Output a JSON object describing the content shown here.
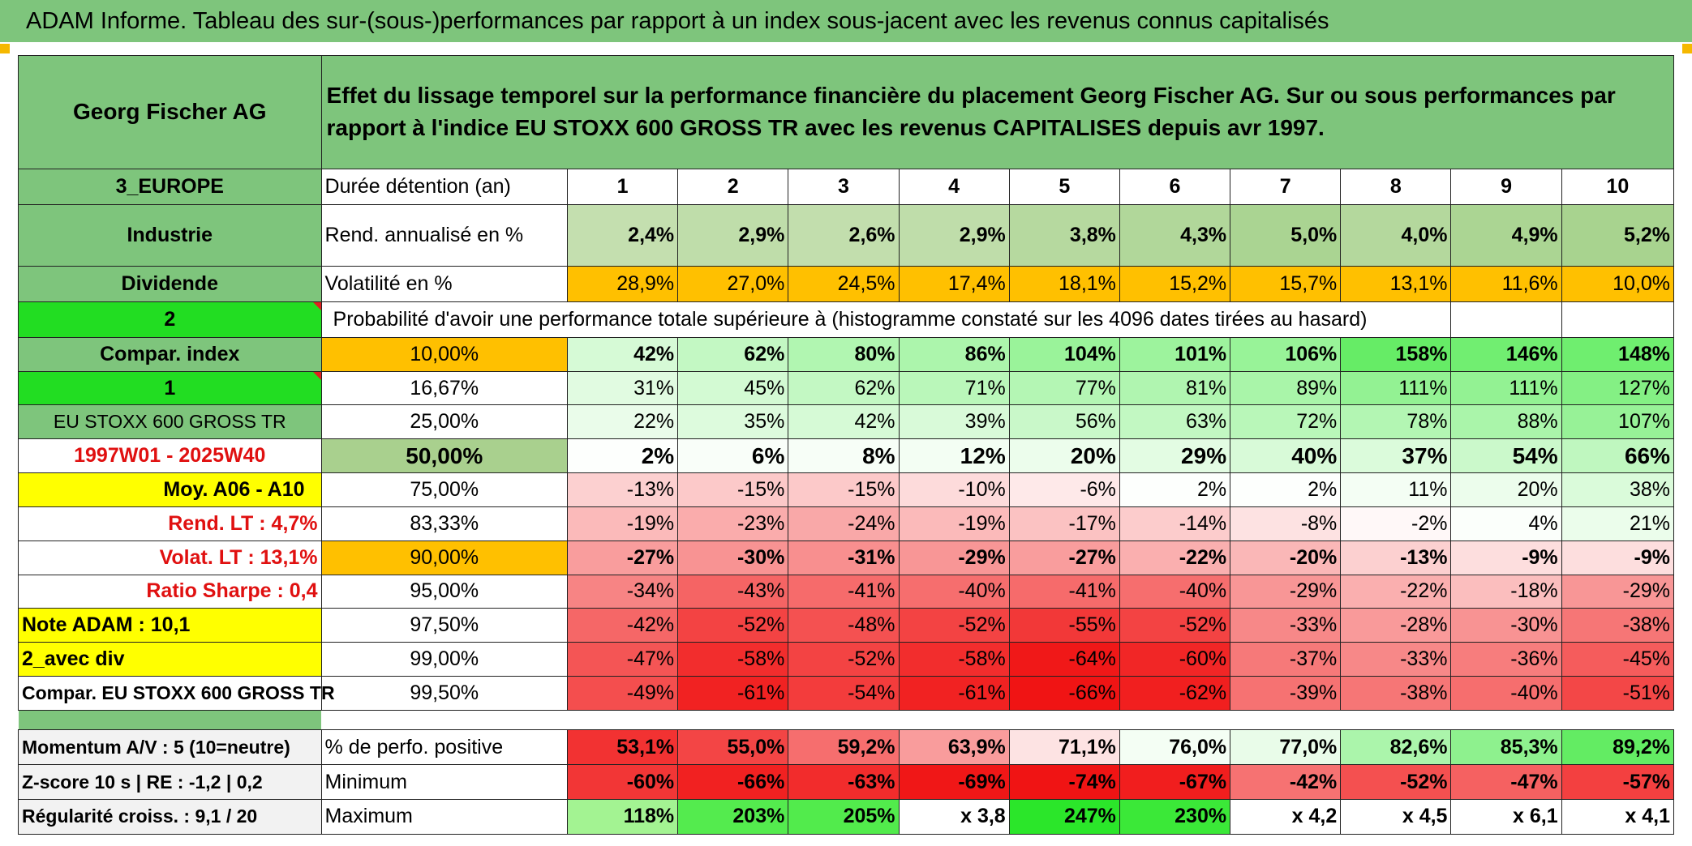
{
  "title": "ADAM Informe. Tableau des sur-(sous-)performances par rapport à un index sous-jacent avec les revenus connus capitalisés",
  "company": "Georg Fischer AG",
  "description": "Effet du lissage temporel sur la performance financière du placement Georg Fischer AG. Sur ou sous performances par rapport à l'indice EU STOXX 600 GROSS TR avec les revenus CAPITALISES depuis avr 1997.",
  "left_labels": {
    "region": "3_EUROPE",
    "sector": "Industrie",
    "dividend": "Dividende",
    "value_2": "2",
    "compar_index": "Compar. index",
    "value_1": "1",
    "index_name": "EU STOXX 600 GROSS TR",
    "period": "1997W01 - 2025W40",
    "moy": "Moy. A06 - A10",
    "rend_lt": "Rend. LT :   4,7%",
    "volat_lt": "Volat. LT :   13,1%",
    "sharpe": "Ratio Sharpe :    0,4",
    "note_adam": "Note ADAM : 10,1",
    "avec_div": "2_avec div",
    "compar_full": "Compar. EU STOXX 600 GROSS TR",
    "momentum": "Momentum A/V : 5 (10=neutre)",
    "zscore": "Z-score 10 s | RE : -1,2 | 0,2",
    "regularite": "Régularité croiss. : 9,1 / 20"
  },
  "row_labels": {
    "duree": "Durée détention (an)",
    "rend": "Rend. annualisé en %",
    "volat": "Volatilité en %",
    "probabilite": "Probabilité d'avoir une performance totale supérieure à (histogramme constaté sur les 4096 dates tirées au hasard)",
    "perfo_pos": "% de perfo. positive",
    "minimum": "Minimum",
    "maximum": "Maximum"
  },
  "years": [
    "1",
    "2",
    "3",
    "4",
    "5",
    "6",
    "7",
    "8",
    "9",
    "10"
  ],
  "rend": [
    "2,4%",
    "2,9%",
    "2,6%",
    "2,9%",
    "3,8%",
    "4,3%",
    "5,0%",
    "4,0%",
    "4,9%",
    "5,2%"
  ],
  "volat": [
    "28,9%",
    "27,0%",
    "24,5%",
    "17,4%",
    "18,1%",
    "15,2%",
    "15,7%",
    "13,1%",
    "11,6%",
    "10,0%"
  ],
  "prob_rows": [
    {
      "pct": "10,00%",
      "values": [
        "42%",
        "62%",
        "80%",
        "86%",
        "104%",
        "101%",
        "106%",
        "158%",
        "146%",
        "148%"
      ]
    },
    {
      "pct": "16,67%",
      "values": [
        "31%",
        "45%",
        "62%",
        "71%",
        "77%",
        "81%",
        "89%",
        "111%",
        "111%",
        "127%"
      ]
    },
    {
      "pct": "25,00%",
      "values": [
        "22%",
        "35%",
        "42%",
        "39%",
        "56%",
        "63%",
        "72%",
        "78%",
        "88%",
        "107%"
      ]
    },
    {
      "pct": "50,00%",
      "values": [
        "2%",
        "6%",
        "8%",
        "12%",
        "20%",
        "29%",
        "40%",
        "37%",
        "54%",
        "66%"
      ]
    },
    {
      "pct": "75,00%",
      "values": [
        "-13%",
        "-15%",
        "-15%",
        "-10%",
        "-6%",
        "2%",
        "2%",
        "11%",
        "20%",
        "38%"
      ]
    },
    {
      "pct": "83,33%",
      "values": [
        "-19%",
        "-23%",
        "-24%",
        "-19%",
        "-17%",
        "-14%",
        "-8%",
        "-2%",
        "4%",
        "21%"
      ]
    },
    {
      "pct": "90,00%",
      "values": [
        "-27%",
        "-30%",
        "-31%",
        "-29%",
        "-27%",
        "-22%",
        "-20%",
        "-13%",
        "-9%",
        "-9%"
      ]
    },
    {
      "pct": "95,00%",
      "values": [
        "-34%",
        "-43%",
        "-41%",
        "-40%",
        "-41%",
        "-40%",
        "-29%",
        "-22%",
        "-18%",
        "-29%"
      ]
    },
    {
      "pct": "97,50%",
      "values": [
        "-42%",
        "-52%",
        "-48%",
        "-52%",
        "-55%",
        "-52%",
        "-33%",
        "-28%",
        "-30%",
        "-38%"
      ]
    },
    {
      "pct": "99,00%",
      "values": [
        "-47%",
        "-58%",
        "-52%",
        "-58%",
        "-64%",
        "-60%",
        "-37%",
        "-33%",
        "-36%",
        "-45%"
      ]
    },
    {
      "pct": "99,50%",
      "values": [
        "-49%",
        "-61%",
        "-54%",
        "-61%",
        "-66%",
        "-62%",
        "-39%",
        "-38%",
        "-40%",
        "-51%"
      ]
    }
  ],
  "perfo_pos": [
    "53,1%",
    "55,0%",
    "59,2%",
    "63,9%",
    "71,1%",
    "76,0%",
    "77,0%",
    "82,6%",
    "85,3%",
    "89,2%"
  ],
  "minimum": [
    "-60%",
    "-66%",
    "-63%",
    "-69%",
    "-74%",
    "-67%",
    "-42%",
    "-52%",
    "-47%",
    "-57%"
  ],
  "maximum": [
    "118%",
    "203%",
    "205%",
    "x 3,8",
    "247%",
    "230%",
    "x 4,2",
    "x 4,5",
    "x 6,1",
    "x 4,1"
  ],
  "colors": {
    "header_green": "#7ec57c",
    "bright_green": "#22dd22",
    "orange": "#ffc000",
    "yellow": "#ffff00",
    "label_red": "#e01010"
  }
}
